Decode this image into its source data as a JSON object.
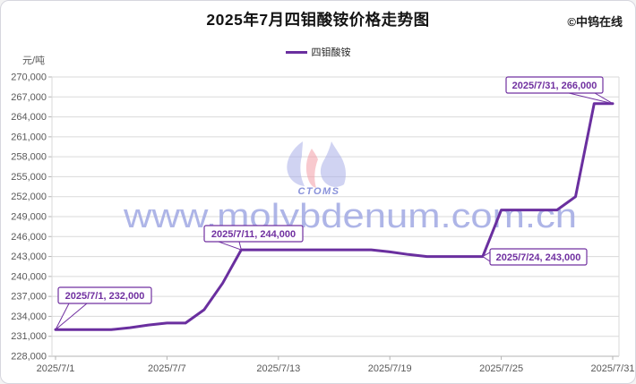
{
  "meta": {
    "title": "2025年7月四钼酸铵价格走势图",
    "copyright": "©中钨在线"
  },
  "legend": {
    "series_label": "四钼酸铵"
  },
  "watermark": {
    "text": "www.molybdenum.com.cn",
    "logo_text": "CTOMS"
  },
  "chart_data": {
    "type": "line",
    "title": "2025年7月四钼酸铵价格走势图",
    "ylabel": "元/吨",
    "unit_label": "元/吨",
    "ylim": [
      228000,
      270000
    ],
    "y_step": 3000,
    "grid": "on",
    "legend_position": "top-center",
    "y_tick_labels": [
      "270,000",
      "267,000",
      "264,000",
      "261,000",
      "258,000",
      "255,000",
      "252,000",
      "249,000",
      "246,000",
      "243,000",
      "240,000",
      "237,000",
      "234,000",
      "231,000",
      "228,000"
    ],
    "x_tick_labels": [
      "2025/7/1",
      "2025/7/7",
      "2025/7/13",
      "2025/7/19",
      "2025/7/25",
      "2025/7/31"
    ],
    "x_tick_days": [
      1,
      7,
      13,
      19,
      25,
      31
    ],
    "x": [
      "2025/7/1",
      "2025/7/2",
      "2025/7/3",
      "2025/7/4",
      "2025/7/5",
      "2025/7/6",
      "2025/7/7",
      "2025/7/8",
      "2025/7/9",
      "2025/7/10",
      "2025/7/11",
      "2025/7/12",
      "2025/7/13",
      "2025/7/14",
      "2025/7/15",
      "2025/7/16",
      "2025/7/17",
      "2025/7/18",
      "2025/7/19",
      "2025/7/20",
      "2025/7/21",
      "2025/7/22",
      "2025/7/23",
      "2025/7/24",
      "2025/7/25",
      "2025/7/26",
      "2025/7/27",
      "2025/7/28",
      "2025/7/29",
      "2025/7/30",
      "2025/7/31"
    ],
    "series": [
      {
        "name": "四钼酸铵",
        "color": "#6a2f9f",
        "values": [
          232000,
          232000,
          232000,
          232000,
          232300,
          232700,
          233000,
          233000,
          235000,
          239000,
          244000,
          244000,
          244000,
          244000,
          244000,
          244000,
          244000,
          244000,
          243700,
          243300,
          243000,
          243000,
          243000,
          243000,
          250000,
          250000,
          250000,
          250000,
          252000,
          266000,
          266000
        ]
      }
    ],
    "annotations": [
      {
        "label": "2025/7/1, 232,000",
        "date": "2025/7/1",
        "day": 1,
        "value": 232000
      },
      {
        "label": "2025/7/11, 244,000",
        "date": "2025/7/11",
        "day": 11,
        "value": 244000
      },
      {
        "label": "2025/7/24, 243,000",
        "date": "2025/7/24",
        "day": 24,
        "value": 243000
      },
      {
        "label": "2025/7/31, 266,000",
        "date": "2025/7/31",
        "day": 31,
        "value": 266000
      }
    ],
    "colors": {
      "series": "#6a2f9f",
      "grid": "#dadada",
      "axis": "#b3b3b3",
      "axis_text": "#595959",
      "callout": "#7030a0",
      "watermark": "#a0a8e3",
      "logo_blue": "#a9aee8",
      "logo_pink": "#f29ca6",
      "logo_text": "#7b85d6"
    }
  }
}
